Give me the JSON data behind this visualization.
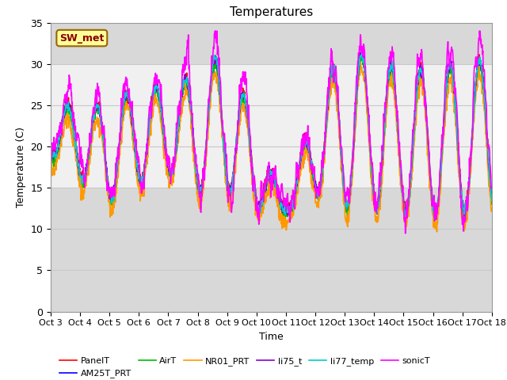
{
  "title": "Temperatures",
  "xlabel": "Time",
  "ylabel": "Temperature (C)",
  "ylim": [
    0,
    35
  ],
  "yticks": [
    0,
    5,
    10,
    15,
    20,
    25,
    30,
    35
  ],
  "x_labels": [
    "Oct 3",
    "Oct 4",
    "Oct 5",
    "Oct 6",
    "Oct 7",
    "Oct 8",
    "Oct 9",
    "Oct 10",
    "Oct 11",
    "Oct 12",
    "Oct 13",
    "Oct 14",
    "Oct 15",
    "Oct 16",
    "Oct 17",
    "Oct 18"
  ],
  "series_order": [
    "PanelT",
    "AM25T_PRT",
    "AirT",
    "NR01_PRT",
    "li75_t",
    "li77_temp",
    "sonicT"
  ],
  "series_colors": {
    "PanelT": "#ff0000",
    "AM25T_PRT": "#0000ff",
    "AirT": "#00bb00",
    "NR01_PRT": "#ff9900",
    "li75_t": "#8800cc",
    "li77_temp": "#00cccc",
    "sonicT": "#ff00ff"
  },
  "lw": 1.2,
  "annotation_text": "SW_met",
  "annotation_color": "#880000",
  "annotation_bg": "#ffff99",
  "annotation_border": "#996600",
  "bg_white_low": 15,
  "bg_white_high": 30,
  "bg_gray": "#d8d8d8",
  "bg_white": "#f0f0f0",
  "grid_color": "#c8c8c8"
}
